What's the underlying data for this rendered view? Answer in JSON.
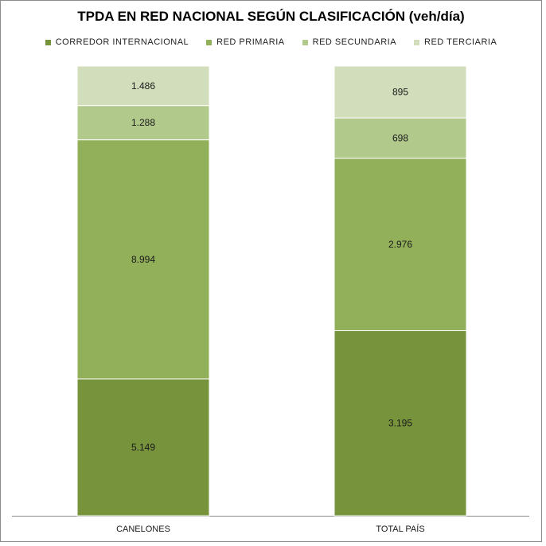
{
  "chart_data": {
    "type": "bar",
    "stacked": true,
    "title": "TPDA EN RED NACIONAL SEGÚN CLASIFICACIÓN (veh/día)",
    "categories": [
      "CANELONES",
      "TOTAL PAÍS"
    ],
    "series": [
      {
        "name": "CORREDOR INTERNACIONAL",
        "color": "#77933c",
        "values": [
          5149,
          3195
        ],
        "labels": [
          "5.149",
          "3.195"
        ]
      },
      {
        "name": "RED PRIMARIA",
        "color": "#92b05a",
        "values": [
          8994,
          2976
        ],
        "labels": [
          "8.994",
          "2.976"
        ]
      },
      {
        "name": "RED SECUNDARIA",
        "color": "#b2c98c",
        "values": [
          1288,
          698
        ],
        "labels": [
          "1.288",
          "698"
        ]
      },
      {
        "name": "RED TERCIARIA",
        "color": "#d1ddbb",
        "values": [
          1486,
          895
        ],
        "labels": [
          "1.486",
          "895"
        ]
      }
    ],
    "percent_stacked": true,
    "legend_position": "top",
    "grid": false
  }
}
